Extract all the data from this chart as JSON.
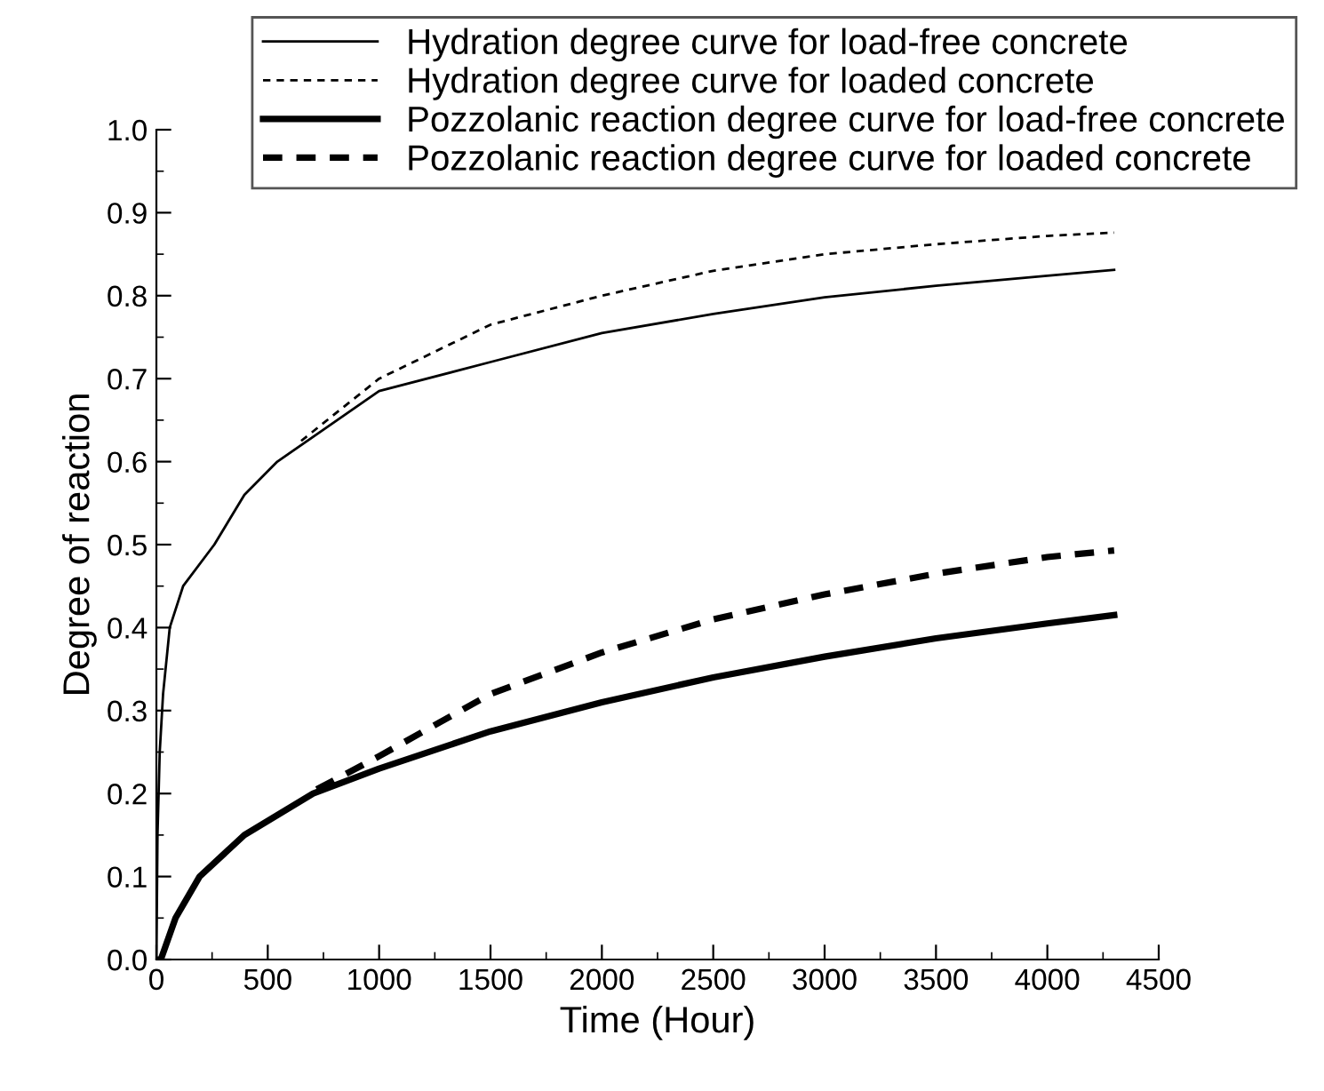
{
  "chart_data": {
    "type": "line",
    "xlabel": "Time (Hour)",
    "ylabel": "Degree of reaction",
    "xlim": [
      0,
      4500
    ],
    "xticks": [
      0,
      500,
      1000,
      1500,
      2000,
      2500,
      3000,
      3500,
      4000,
      4500
    ],
    "ylim": [
      0,
      1.0
    ],
    "yticks": [
      {
        "value": 0,
        "label": "0.0"
      },
      0.1,
      0.2,
      0.3,
      0.4,
      0.5,
      0.6,
      0.7,
      0.8,
      0.9,
      {
        "value": 1,
        "label": "1.0"
      }
    ],
    "grid": false,
    "legend": "top right",
    "marker": "none",
    "series": [
      {
        "name": "Hydration degree curve for load-free concrete",
        "color": "#000000",
        "line_style": "solid",
        "x": [
          0,
          5,
          15,
          30,
          60,
          120,
          260,
          395,
          543,
          704,
          1000,
          1500,
          2000,
          2500,
          3000,
          3500,
          4000,
          4300
        ],
        "values": [
          0,
          0.15,
          0.25,
          0.32,
          0.4,
          0.45,
          0.5,
          0.56,
          0.6,
          0.63,
          0.685,
          0.72,
          0.755,
          0.778,
          0.798,
          0.812,
          0.824,
          0.831
        ]
      },
      {
        "name": "Hydration degree curve for loaded concrete",
        "color": "#000000",
        "line_style": "dotted",
        "x": [
          650,
          1000,
          1500,
          2000,
          2500,
          3000,
          3500,
          4000,
          4300
        ],
        "values": [
          0.625,
          0.7,
          0.765,
          0.8,
          0.83,
          0.85,
          0.862,
          0.872,
          0.876
        ]
      },
      {
        "name": "Pozzolanic reaction degree curve for load-free concrete",
        "color": "#000000",
        "line_style": "solid",
        "x": [
          0,
          20,
          86,
          194,
          395,
          704,
          1000,
          1500,
          2000,
          2500,
          3000,
          3500,
          4000,
          4300
        ],
        "values": [
          0,
          0,
          0.05,
          0.1,
          0.15,
          0.2,
          0.23,
          0.275,
          0.31,
          0.34,
          0.365,
          0.387,
          0.405,
          0.415
        ]
      },
      {
        "name": "Pozzolanic reaction degree curve for loaded concrete",
        "color": "#000000",
        "line_style": "dashed",
        "x": [
          720,
          1000,
          1500,
          2000,
          2500,
          3000,
          3500,
          4000,
          4300
        ],
        "values": [
          0.205,
          0.245,
          0.32,
          0.37,
          0.41,
          0.44,
          0.465,
          0.485,
          0.493
        ]
      }
    ]
  }
}
